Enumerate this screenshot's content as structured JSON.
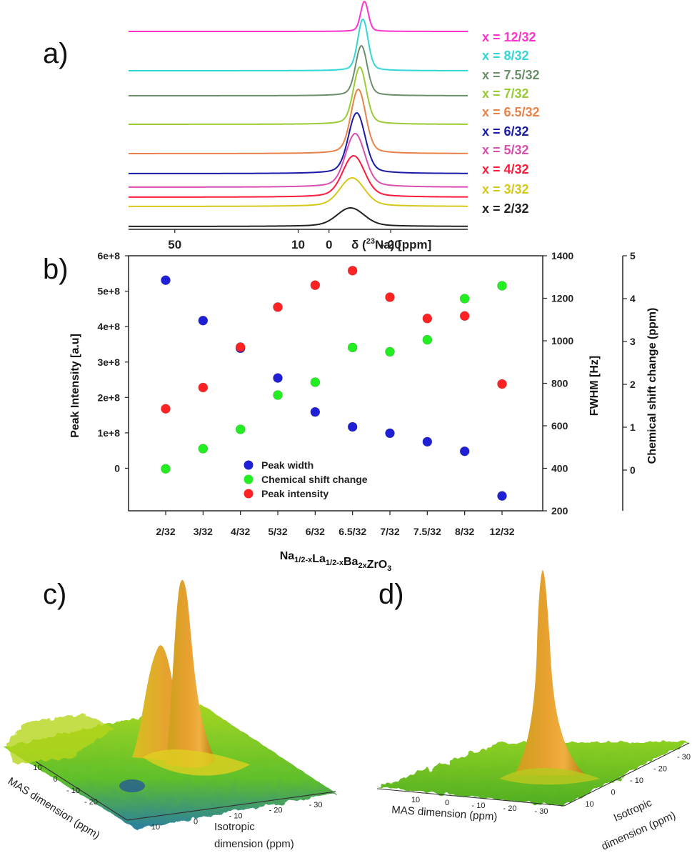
{
  "panels": {
    "a": "a)",
    "b": "b)",
    "c": "c)",
    "d": "d)"
  },
  "chart_data": [
    {
      "panel": "a",
      "type": "line",
      "xlabel": "δ (²³Na) [ppm]",
      "xlabel_parts": {
        "pre": "δ (",
        "sup": "23",
        "post": "Na) [ppm]"
      },
      "xticks": [
        {
          "value": 50,
          "label": "50"
        },
        {
          "value": 10,
          "label": "10"
        },
        {
          "value": 0,
          "label": "0"
        },
        {
          "value": -20,
          "label": "- 20"
        }
      ],
      "xlim": [
        65,
        -45
      ],
      "series": [
        {
          "name": "x = 12/32",
          "color": "#ff33cc",
          "center": -11.5,
          "width": 1.2,
          "height": 42,
          "tail": 0.9
        },
        {
          "name": "x = 8/32",
          "color": "#33d6d6",
          "center": -11.0,
          "width": 1.6,
          "height": 72,
          "tail": 1.3
        },
        {
          "name": "x = 7.5/32",
          "color": "#6b8f6b",
          "center": -10.5,
          "width": 1.8,
          "height": 70,
          "tail": 1.5
        },
        {
          "name": "x = 7/32",
          "color": "#99cc33",
          "center": -10.0,
          "width": 2.0,
          "height": 80,
          "tail": 1.7
        },
        {
          "name": "x = 6.5/32",
          "color": "#e8824a",
          "center": -9.5,
          "width": 2.3,
          "height": 90,
          "tail": 1.9
        },
        {
          "name": "x = 6/32",
          "color": "#1a1aa6",
          "center": -9.0,
          "width": 2.6,
          "height": 85,
          "tail": 2.2
        },
        {
          "name": "x = 5/32",
          "color": "#d94fb0",
          "center": -8.5,
          "width": 3.0,
          "height": 75,
          "tail": 2.6
        },
        {
          "name": "x = 4/32",
          "color": "#ff1a3c",
          "center": -8.0,
          "width": 3.4,
          "height": 58,
          "tail": 3.0
        },
        {
          "name": "x = 3/32",
          "color": "#d6c81a",
          "center": -7.5,
          "width": 3.8,
          "height": 40,
          "tail": 3.5
        },
        {
          "name": "x = 2/32",
          "color": "#222222",
          "center": -7.0,
          "width": 4.2,
          "height": 26,
          "tail": 4.0
        }
      ]
    },
    {
      "panel": "b",
      "type": "scatter",
      "categories": [
        "2/32",
        "3/32",
        "4/32",
        "5/32",
        "6/32",
        "6.5/32",
        "7/32",
        "7.5/32",
        "8/32",
        "12/32"
      ],
      "xlabel_parts": [
        {
          "t": "Na",
          "sub": false
        },
        {
          "t": "1/2-x",
          "sub": true
        },
        {
          "t": "La",
          "sub": false
        },
        {
          "t": "1/2-x",
          "sub": true
        },
        {
          "t": "Ba",
          "sub": false
        },
        {
          "t": "2x",
          "sub": true
        },
        {
          "t": "ZrO",
          "sub": false
        },
        {
          "t": "3",
          "sub": true
        }
      ],
      "axes": {
        "left": {
          "label": "Peak Intensity [a.u]",
          "range": [
            -120000000.0,
            600000000.0
          ],
          "ticks": [
            0,
            100000000.0,
            200000000.0,
            300000000.0,
            400000000.0,
            500000000.0,
            600000000.0
          ],
          "tick_labels": [
            "0",
            "1e+8",
            "2e+8",
            "3e+8",
            "4e+8",
            "5e+8",
            "6e+8"
          ]
        },
        "right1": {
          "label": "FWHM [Hz]",
          "range": [
            200,
            1400
          ],
          "ticks": [
            200,
            400,
            600,
            800,
            1000,
            1200,
            1400
          ],
          "tick_labels": [
            "200",
            "400",
            "600",
            "800",
            "1000",
            "1200",
            "1400"
          ]
        },
        "right2": {
          "label": "Chemical shift change (ppm)",
          "range": [
            -0.95,
            5
          ],
          "ticks": [
            0,
            1,
            2,
            3,
            4,
            5
          ],
          "tick_labels": [
            "0",
            "1",
            "2",
            "3",
            "4",
            "5"
          ]
        }
      },
      "series": [
        {
          "name": "Peak width",
          "axis": "right1",
          "color": "#1f1fd6",
          "values": [
            1285,
            1095,
            965,
            825,
            665,
            595,
            565,
            525,
            480,
            270
          ]
        },
        {
          "name": "Chemical shift change",
          "axis": "right2",
          "color": "#22ee22",
          "values": [
            0.03,
            0.5,
            0.95,
            1.75,
            2.05,
            2.86,
            2.76,
            3.04,
            4.0,
            4.3
          ]
        },
        {
          "name": "Peak intensity",
          "axis": "left",
          "color": "#ff2222",
          "values": [
            168000000.0,
            228000000.0,
            342000000.0,
            455000000.0,
            517000000.0,
            558000000.0,
            483000000.0,
            423000000.0,
            430000000.0,
            238000000.0
          ]
        }
      ]
    },
    {
      "panel": "c",
      "type": "3d-surface",
      "axis1_label": "MAS dimension (ppm)",
      "axis2_label_lines": [
        "Isotropic",
        "dimension (ppm)"
      ],
      "mas_ticks": [
        "10",
        "0",
        "- 10",
        "- 20"
      ],
      "iso_ticks": [
        "10",
        "0",
        "- 10",
        "- 20",
        "- 30"
      ]
    },
    {
      "panel": "d",
      "type": "3d-surface",
      "axis1_label": "MAS dimension (ppm)",
      "axis2_label_lines": [
        "Isotropic",
        "dimension (ppm)"
      ],
      "mas_ticks": [
        "10",
        "0",
        "- 10",
        "- 20",
        "- 30"
      ],
      "iso_ticks": [
        "10",
        "0",
        "- 10",
        "- 20",
        "- 30"
      ]
    }
  ]
}
